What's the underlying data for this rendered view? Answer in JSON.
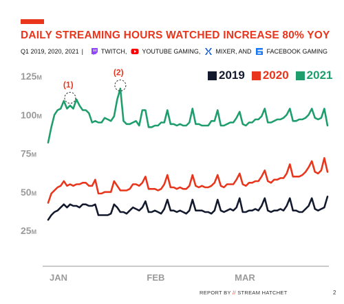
{
  "header": {
    "accent_color": "#e8351c",
    "title": "DAILY STREAMING HOURS WATCHED INCREASE 80% YOY",
    "period": "Q1 2019, 2020, 2021",
    "separator": "|",
    "platforms": [
      {
        "name": "TWITCH,",
        "icon": "twitch-icon",
        "color": "#9146ff"
      },
      {
        "name": "YOUTUBE GAMING,",
        "icon": "youtube-icon",
        "color": "#ff0000"
      },
      {
        "name": "MIXER, AND",
        "icon": "mixer-icon",
        "color": "#0f5bd6"
      },
      {
        "name": "FACEBOOK GAMING",
        "icon": "facebook-gaming-icon",
        "color": "#1877f2"
      }
    ]
  },
  "footer": {
    "report_by": "REPORT BY",
    "slashes": "//",
    "brand": "STREAM HATCHET",
    "page": "2"
  },
  "chart_data": {
    "type": "line",
    "title": "DAILY STREAMING HOURS WATCHED INCREASE 80% YOY",
    "xlabel": "",
    "ylabel": "",
    "ylim": [
      15,
      130
    ],
    "y_ticks": [
      25,
      50,
      75,
      100,
      125
    ],
    "y_tick_labels": [
      "25M",
      "50M",
      "75M",
      "100M",
      "125M"
    ],
    "x_range_days": [
      1,
      90
    ],
    "x_ticks": [
      {
        "day": 1,
        "label": "JAN"
      },
      {
        "day": 32,
        "label": "FEB"
      },
      {
        "day": 60,
        "label": "MAR"
      }
    ],
    "legend_position": "top-right",
    "grid": false,
    "annotations": [
      {
        "label": "(1)",
        "day": 8,
        "value": 111
      },
      {
        "label": "(2)",
        "day": 24,
        "value": 119
      }
    ],
    "series": [
      {
        "name": "2019",
        "color": "#141a2e",
        "values": [
          32,
          35,
          37,
          38,
          40,
          42,
          40,
          42,
          41,
          41,
          40,
          42,
          42,
          41,
          41,
          42,
          35,
          35,
          35,
          35,
          36,
          42,
          40,
          37,
          37,
          36,
          38,
          40,
          39,
          38,
          40,
          44,
          37,
          37,
          38,
          37,
          36,
          39,
          45,
          38,
          38,
          37,
          38,
          37,
          36,
          38,
          45,
          38,
          38,
          38,
          37,
          37,
          36,
          38,
          45,
          38,
          37,
          38,
          39,
          38,
          40,
          46,
          37,
          37,
          38,
          38,
          39,
          38,
          41,
          46,
          38,
          37,
          38,
          38,
          39,
          38,
          41,
          46,
          38,
          38,
          37,
          37,
          39,
          41,
          46,
          39,
          38,
          39,
          40,
          47
        ]
      },
      {
        "name": "2020",
        "color": "#e8351c",
        "values": [
          43,
          49,
          51,
          53,
          54,
          57,
          54,
          55,
          54,
          55,
          55,
          56,
          56,
          54,
          54,
          58,
          49,
          49,
          50,
          50,
          50,
          57,
          54,
          51,
          51,
          51,
          52,
          55,
          55,
          54,
          56,
          60,
          52,
          52,
          52,
          51,
          52,
          55,
          61,
          53,
          53,
          52,
          53,
          52,
          52,
          54,
          61,
          54,
          53,
          54,
          53,
          53,
          54,
          56,
          61,
          54,
          53,
          55,
          55,
          55,
          58,
          62,
          55,
          54,
          56,
          56,
          57,
          57,
          60,
          64,
          57,
          56,
          58,
          58,
          59,
          59,
          62,
          68,
          60,
          60,
          60,
          61,
          63,
          66,
          70,
          63,
          62,
          64,
          72,
          63
        ]
      },
      {
        "name": "2021",
        "color": "#1f9e6d",
        "values": [
          82,
          92,
          100,
          103,
          104,
          109,
          104,
          106,
          104,
          110,
          106,
          103,
          103,
          101,
          95,
          96,
          95,
          95,
          98,
          97,
          96,
          99,
          110,
          117,
          96,
          94,
          94,
          95,
          96,
          93,
          103,
          103,
          92,
          92,
          93,
          93,
          95,
          95,
          103,
          94,
          94,
          93,
          94,
          93,
          93,
          95,
          104,
          94,
          94,
          93,
          93,
          93,
          96,
          96,
          103,
          93,
          93,
          94,
          95,
          95,
          98,
          102,
          94,
          93,
          95,
          95,
          97,
          97,
          99,
          104,
          95,
          95,
          96,
          97,
          97,
          98,
          100,
          104,
          96,
          96,
          97,
          97,
          98,
          100,
          104,
          98,
          97,
          98,
          104,
          93
        ]
      }
    ]
  }
}
